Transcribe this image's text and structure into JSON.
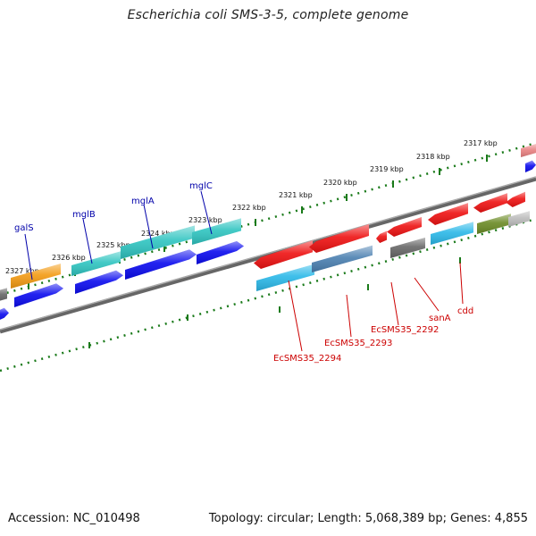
{
  "title": "Escherichia coli SMS-3-5, complete genome",
  "footer": {
    "accession": "Accession: NC_010498",
    "summary": "Topology: circular; Length: 5,068,389 bp; Genes: 4,855"
  },
  "colors": {
    "forward_gene_label": "#0000aa",
    "reverse_gene_label": "#cc0000",
    "tick": "#1a7a1a",
    "backbone": "#888888",
    "red": "#ee1111",
    "blue": "#0a0aee",
    "cyan": "#2ab8e8",
    "teal": "#2ec4c0",
    "orange": "#f39a12",
    "gray": "#666666",
    "lightgray": "#bbbbbb",
    "olive": "#6a8a24",
    "steel": "#4a7fb0",
    "pink": "#e88080"
  },
  "ruler_labels": [
    "2317 kbp",
    "2318 kbp",
    "2319 kbp",
    "2320 kbp",
    "2321 kbp",
    "2322 kbp",
    "2323 kbp",
    "2324 kbp",
    "2325 kbp",
    "2326 kbp",
    "2327 kbp"
  ],
  "forward_genes": [
    "mglC",
    "mglA",
    "mglB",
    "galS"
  ],
  "reverse_genes": [
    "cdd",
    "sanA",
    "EcSMS35_2292",
    "EcSMS35_2293",
    "EcSMS35_2294"
  ]
}
